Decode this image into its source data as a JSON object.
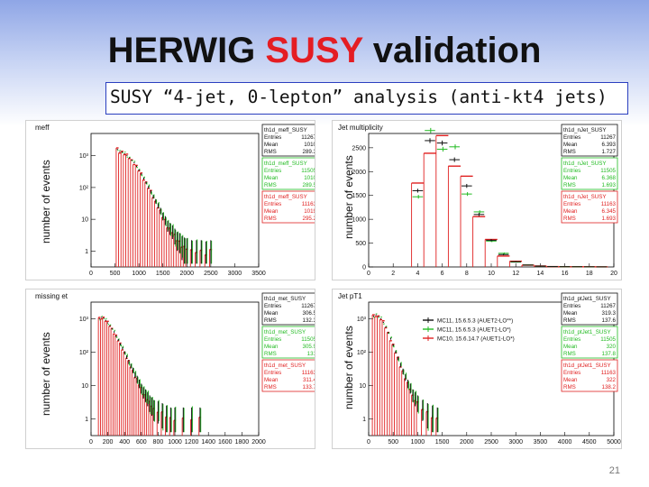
{
  "slide": {
    "title_part1": "HERWIG ",
    "title_part2": "SUSY",
    "title_part3": " validation",
    "subtitle": "SUSY “4-jet, 0-lepton” analysis (anti-kt4 jets)",
    "page_number": "21",
    "ylabel": "number of events"
  },
  "colors": {
    "mc11": "#111111",
    "mc11b": "#22bb22",
    "mc10": "#e02020",
    "accent": "#e41d23"
  },
  "chart_data": [
    {
      "type": "histogram",
      "title": "meff",
      "log_y": true,
      "xlim": [
        0,
        3500
      ],
      "ylim_log10": [
        -0.5,
        3.7
      ],
      "x_ticks": [
        0,
        500,
        1000,
        1500,
        2000,
        2500,
        3000,
        3500
      ],
      "y_ticks": [
        {
          "v": 1,
          "label": "1"
        },
        {
          "v": 10,
          "label": "10"
        },
        {
          "v": 100,
          "label": "10²"
        },
        {
          "v": 1000,
          "label": "10³"
        }
      ],
      "stats": [
        {
          "name": "th1d_meff_SUSY",
          "entries": "11267",
          "mean": "1010",
          "rms": "289.3",
          "color": "#111111"
        },
        {
          "name": "th1d_meff_SUSY",
          "entries": "11505",
          "mean": "1010",
          "rms": "289.5",
          "color": "#22bb22"
        },
        {
          "name": "th1d_meff_SUSY",
          "entries": "11163",
          "mean": "1019",
          "rms": "295.2",
          "color": "#e02020"
        }
      ],
      "x": [
        550,
        600,
        650,
        700,
        750,
        800,
        850,
        900,
        950,
        1000,
        1050,
        1100,
        1150,
        1200,
        1250,
        1300,
        1350,
        1400,
        1450,
        1500,
        1550,
        1600,
        1650,
        1700,
        1750,
        1800,
        1850,
        1900,
        1950,
        2000,
        2100,
        2200,
        2300,
        2400,
        2500
      ],
      "values": [
        1600,
        1350,
        1300,
        1150,
        1000,
        850,
        720,
        600,
        460,
        350,
        260,
        190,
        140,
        100,
        72,
        50,
        36,
        26,
        18,
        12,
        9,
        6,
        5,
        4,
        3,
        2.2,
        2,
        1.5,
        1.3,
        1.2,
        1,
        1,
        1,
        0.8,
        1
      ]
    },
    {
      "type": "histogram",
      "title": "Jet multiplicity",
      "log_y": false,
      "xlim": [
        0,
        20
      ],
      "ylim": [
        0,
        2800
      ],
      "x_ticks": [
        0,
        2,
        4,
        6,
        8,
        10,
        12,
        14,
        16,
        18,
        20
      ],
      "y_ticks": [
        {
          "v": 0,
          "label": "0"
        },
        {
          "v": 500,
          "label": "500"
        },
        {
          "v": 1000,
          "label": "1000"
        },
        {
          "v": 1500,
          "label": "1500"
        },
        {
          "v": 2000,
          "label": "2000"
        },
        {
          "v": 2500,
          "label": "2500"
        }
      ],
      "stats": [
        {
          "name": "th1d_nJet_SUSY",
          "entries": "11267",
          "mean": "6.393",
          "rms": "1.727",
          "color": "#111111"
        },
        {
          "name": "th1d_nJet_SUSY",
          "entries": "11505",
          "mean": "6.368",
          "rms": "1.693",
          "color": "#22bb22"
        },
        {
          "name": "th1d_nJet_SUSY",
          "entries": "11163",
          "mean": "6.345",
          "rms": "1.693",
          "color": "#e02020"
        }
      ],
      "x": [
        4,
        5,
        6,
        7,
        8,
        9,
        10,
        11,
        12,
        13,
        14,
        15,
        16,
        17,
        18,
        19
      ],
      "values": [
        1600,
        2650,
        2600,
        2250,
        1700,
        1100,
        560,
        260,
        110,
        40,
        18,
        8,
        5,
        4,
        3,
        2
      ]
    },
    {
      "type": "histogram",
      "title": "missing et",
      "log_y": true,
      "xlim": [
        0,
        2000
      ],
      "ylim_log10": [
        -0.5,
        3.5
      ],
      "x_ticks": [
        0,
        200,
        400,
        600,
        800,
        1000,
        1200,
        1400,
        1600,
        1800,
        2000
      ],
      "y_ticks": [
        {
          "v": 1,
          "label": "1"
        },
        {
          "v": 10,
          "label": "10"
        },
        {
          "v": 100,
          "label": "10²"
        },
        {
          "v": 1000,
          "label": "10³"
        }
      ],
      "stats": [
        {
          "name": "th1d_met_SUSY",
          "entries": "11267",
          "mean": "306.5",
          "rms": "132.3",
          "color": "#111111"
        },
        {
          "name": "th1d_met_SUSY",
          "entries": "11505",
          "mean": "305.9",
          "rms": "131",
          "color": "#22bb22"
        },
        {
          "name": "th1d_met_SUSY",
          "entries": "11163",
          "mean": "311.4",
          "rms": "133.7",
          "color": "#e02020"
        }
      ],
      "x": [
        100,
        125,
        150,
        175,
        200,
        225,
        250,
        275,
        300,
        325,
        350,
        375,
        400,
        425,
        450,
        475,
        500,
        525,
        550,
        575,
        600,
        625,
        650,
        675,
        700,
        725,
        750,
        800,
        850,
        900,
        950,
        1000,
        1100,
        1200,
        1300
      ],
      "values": [
        1000,
        1100,
        1050,
        900,
        750,
        620,
        500,
        400,
        300,
        230,
        170,
        130,
        95,
        70,
        50,
        37,
        28,
        20,
        15,
        11,
        8,
        6,
        5,
        4,
        3,
        2.5,
        2,
        1.8,
        1.5,
        1.2,
        1,
        1,
        1,
        1,
        1
      ]
    },
    {
      "type": "histogram",
      "title": "Jet pT1",
      "log_y": true,
      "xlim": [
        0,
        5000
      ],
      "ylim_log10": [
        -0.5,
        3.5
      ],
      "x_ticks": [
        0,
        500,
        1000,
        1500,
        2000,
        2500,
        3000,
        3500,
        4000,
        4500,
        5000
      ],
      "y_ticks": [
        {
          "v": 1,
          "label": "1"
        },
        {
          "v": 10,
          "label": "10"
        },
        {
          "v": 100,
          "label": "10²"
        },
        {
          "v": 1000,
          "label": "10³"
        }
      ],
      "legend": [
        "MC11, 15.6.5.3 (AUET2-LO**)",
        "MC11, 15.6.5.3 (AUET1-LO*)",
        "MC10, 15.6.14.7 (AUET1-LO*)"
      ],
      "stats": [
        {
          "name": "th1d_ptJet1_SUSY",
          "entries": "11267",
          "mean": "319.3",
          "rms": "137.6",
          "color": "#111111"
        },
        {
          "name": "th1d_ptJet1_SUSY",
          "entries": "11505",
          "mean": "320",
          "rms": "137.8",
          "color": "#22bb22"
        },
        {
          "name": "th1d_ptJet1_SUSY",
          "entries": "11163",
          "mean": "322",
          "rms": "138.2",
          "color": "#e02020"
        }
      ],
      "x": [
        100,
        150,
        200,
        250,
        300,
        350,
        400,
        450,
        500,
        550,
        600,
        650,
        700,
        750,
        800,
        850,
        900,
        950,
        1000,
        1100,
        1200,
        1300,
        1400
      ],
      "values": [
        1200,
        1300,
        1150,
        1000,
        780,
        560,
        380,
        250,
        160,
        100,
        64,
        40,
        26,
        17,
        11,
        8,
        5,
        4,
        3,
        2,
        1.5,
        1.2,
        1
      ]
    }
  ]
}
